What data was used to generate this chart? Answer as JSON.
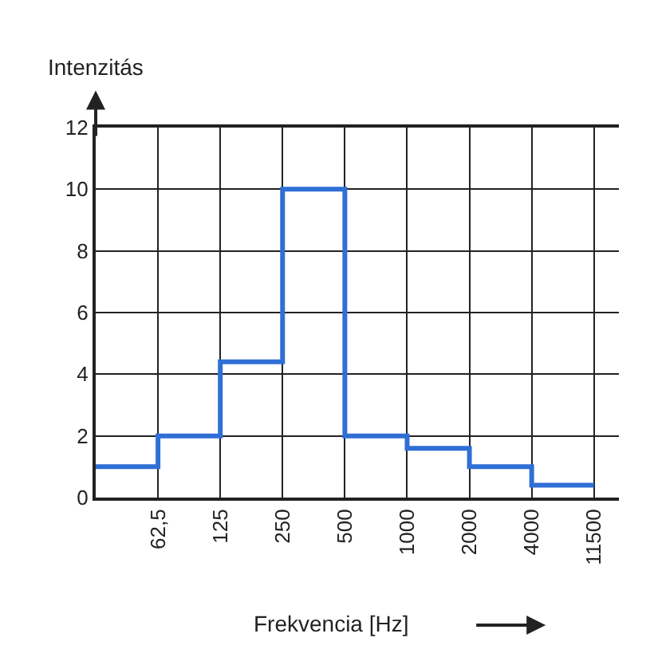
{
  "chart_data": {
    "type": "step",
    "ylabel": "Intenzitás",
    "xlabel": "Frekvencia [Hz]",
    "categories": [
      null,
      "62,5",
      "125",
      "250",
      "500",
      "1000",
      "2000",
      "4000",
      "11500"
    ],
    "series": [
      {
        "color": "#2f6fd6",
        "values": [
          1,
          2,
          4.4,
          10,
          2,
          1.6,
          1,
          0.4,
          0.4
        ]
      }
    ],
    "ylim": [
      0,
      12
    ],
    "yticks": [
      0,
      2,
      4,
      6,
      8,
      10,
      12
    ],
    "grid": true,
    "legend": false,
    "marker": "none",
    "line_style": "solid"
  }
}
